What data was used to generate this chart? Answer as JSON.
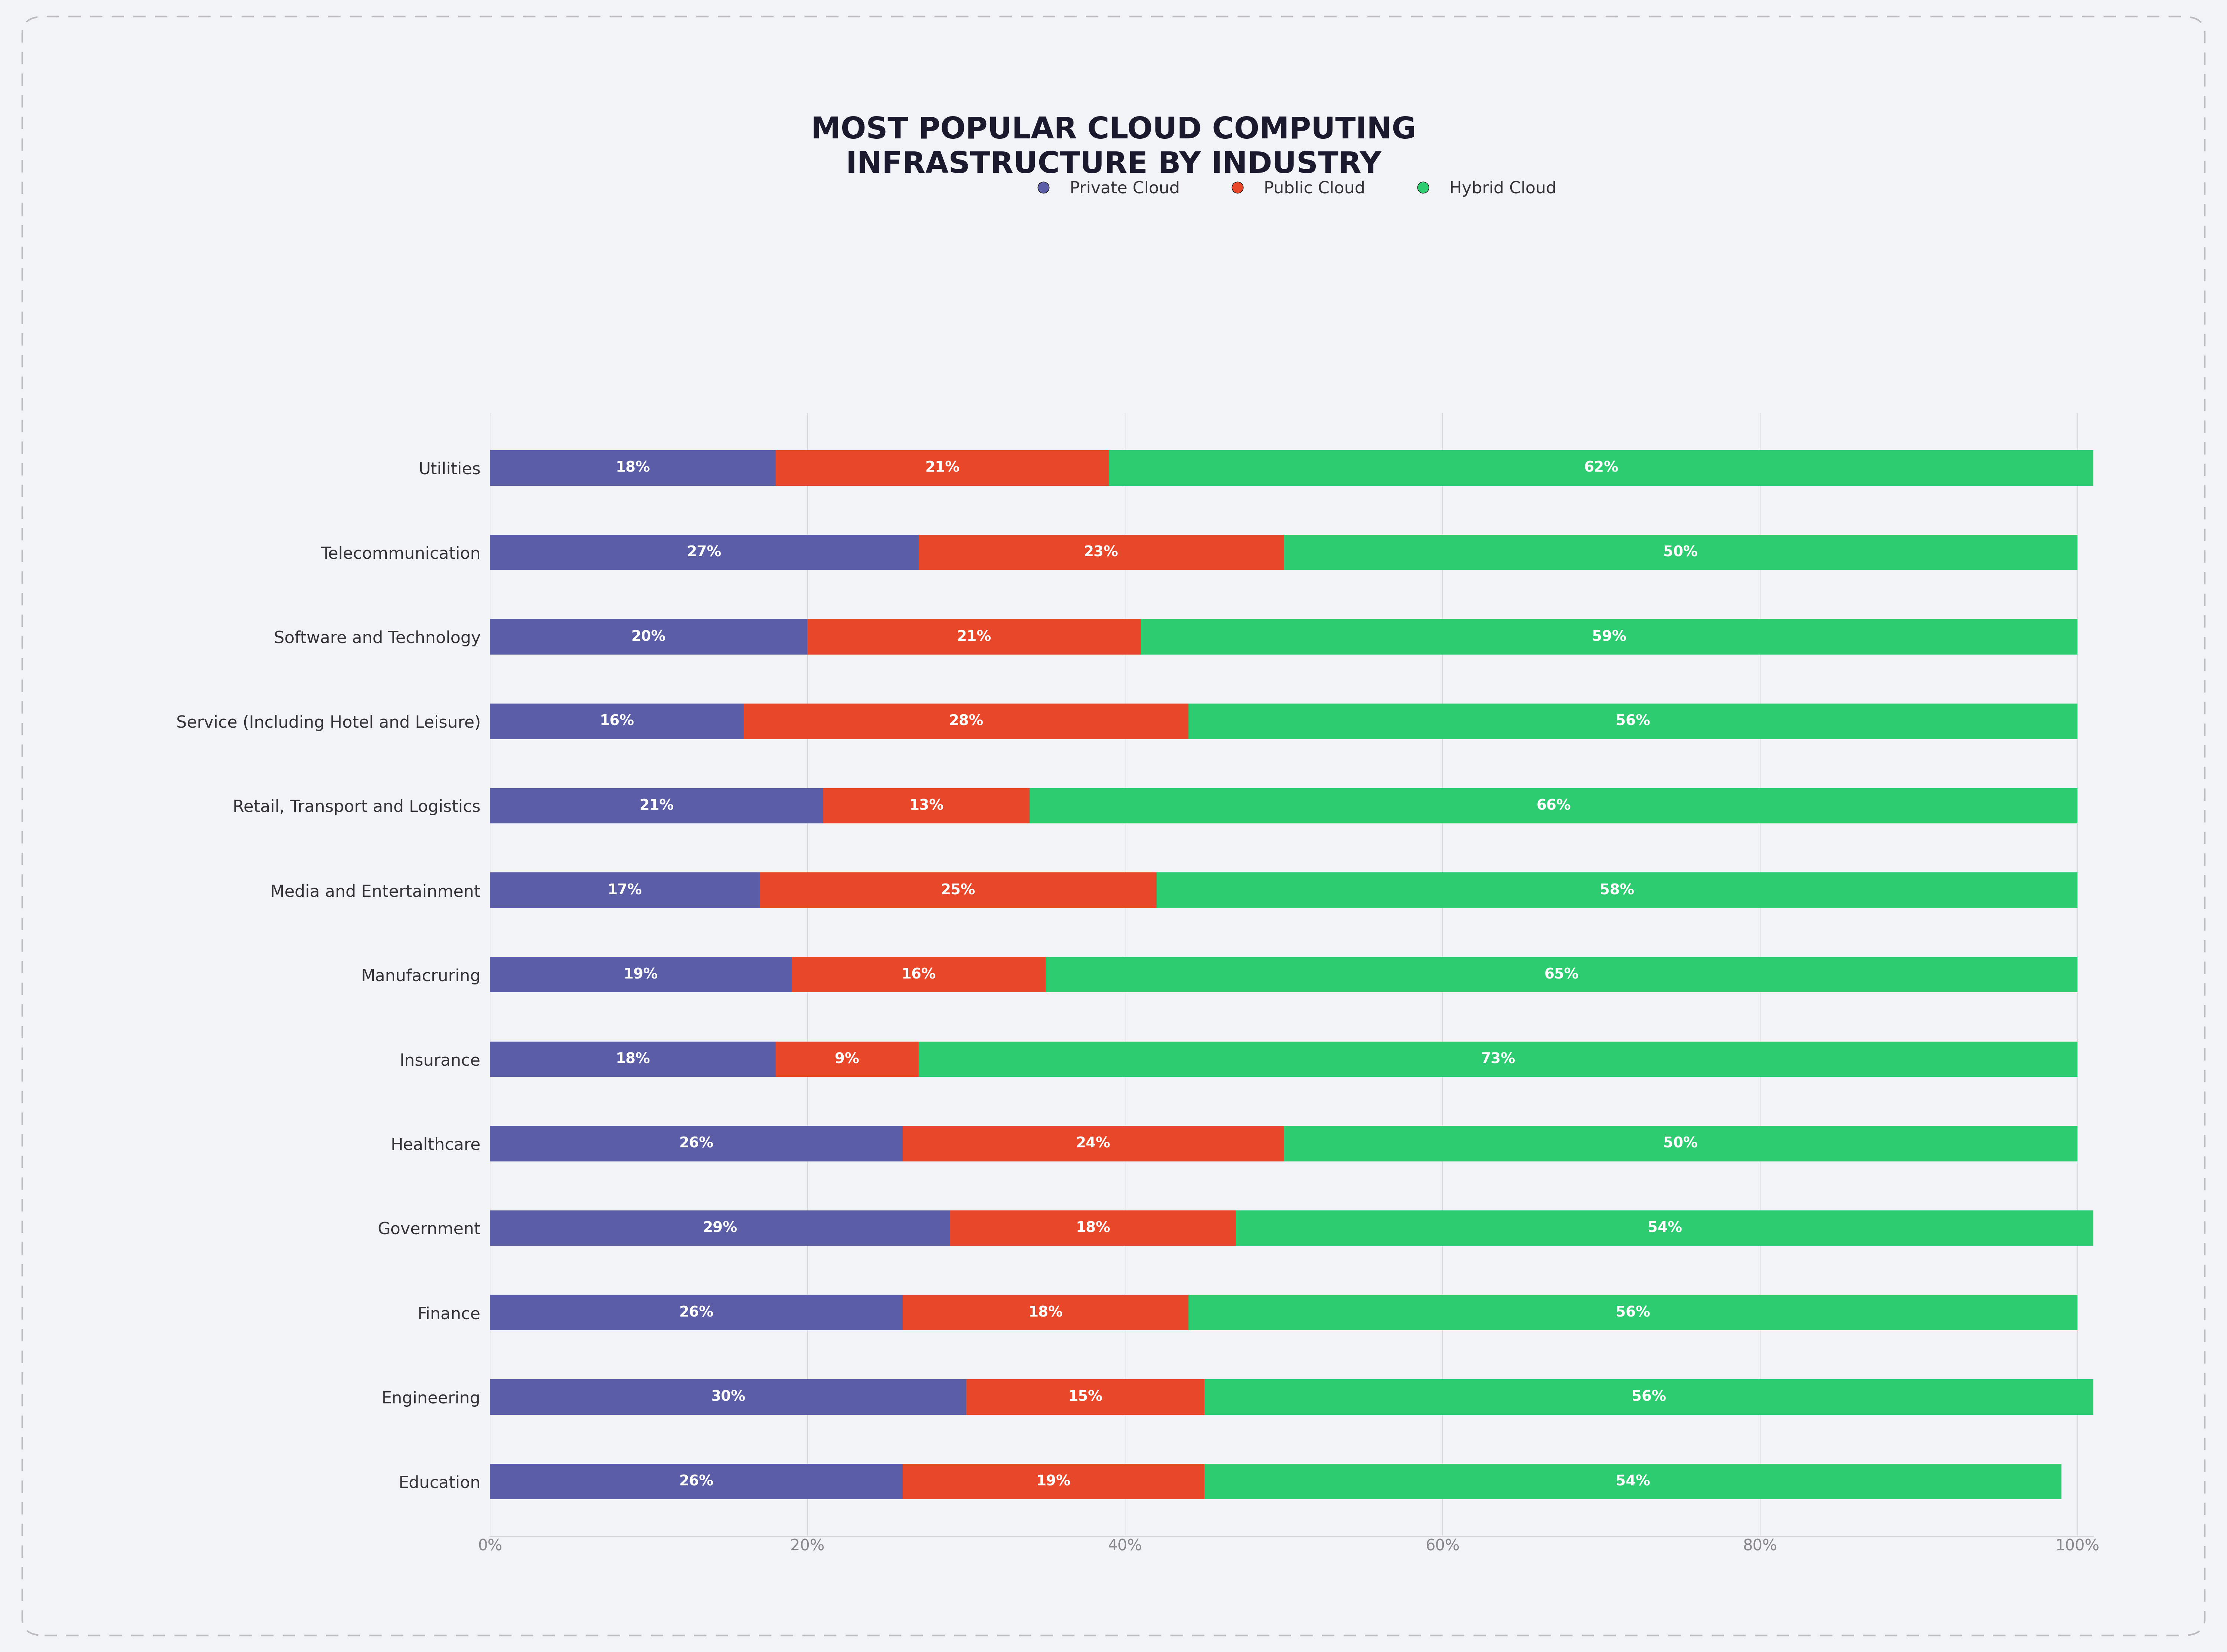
{
  "title": "MOST POPULAR CLOUD COMPUTING\nINFRASTRUCTURE BY INDUSTRY",
  "categories": [
    "Utilities",
    "Telecommunication",
    "Software and Technology",
    "Service (Including Hotel and Leisure)",
    "Retail, Transport and Logistics",
    "Media and Entertainment",
    "Manufacruring",
    "Insurance",
    "Healthcare",
    "Government",
    "Finance",
    "Engineering",
    "Education"
  ],
  "private_cloud": [
    18,
    27,
    20,
    16,
    21,
    17,
    19,
    18,
    26,
    29,
    26,
    30,
    26
  ],
  "public_cloud": [
    21,
    23,
    21,
    28,
    13,
    25,
    16,
    9,
    24,
    18,
    18,
    15,
    19
  ],
  "hybrid_cloud": [
    62,
    50,
    59,
    56,
    66,
    58,
    65,
    73,
    50,
    54,
    56,
    56,
    54
  ],
  "colors": {
    "private": "#5B5EA6",
    "public": "#E8472A",
    "hybrid": "#2ECC71"
  },
  "legend_labels": [
    "Private Cloud",
    "Public Cloud",
    "Hybrid Cloud"
  ],
  "background_color": "#F2F3F7",
  "bar_height": 0.42,
  "title_fontsize": 58,
  "label_fontsize": 32,
  "tick_fontsize": 30,
  "legend_fontsize": 32,
  "value_fontsize": 28
}
